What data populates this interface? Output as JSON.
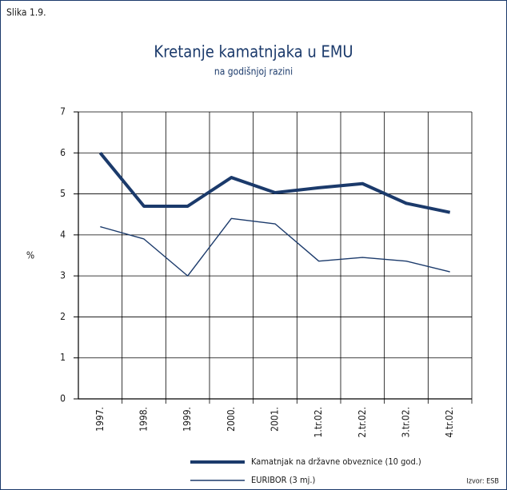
{
  "chart_data": {
    "type": "line",
    "figure_label": "Slika 1.9.",
    "title": "Kretanje kamatnjaka u EMU",
    "subtitle": "na godišnjoj razini",
    "y_label": "%",
    "source": "Izvor: ESB",
    "categories": [
      "1997.",
      "1998.",
      "1999.",
      "2000.",
      "2001.",
      "1.tr.02.",
      "2.tr.02.",
      "3.tr.02.",
      "4.tr.02."
    ],
    "series": [
      {
        "name": "Kamatnjak na državne obveznice (10 god.)",
        "color": "#1b3a6b",
        "values": [
          6.0,
          4.7,
          4.7,
          5.4,
          5.03,
          5.15,
          5.25,
          4.77,
          4.55
        ]
      },
      {
        "name": "EURIBOR (3 mj.)",
        "color": "#1b3a6b",
        "values": [
          4.2,
          3.9,
          3.0,
          4.4,
          4.27,
          3.36,
          3.45,
          3.36,
          3.1
        ]
      }
    ],
    "ylim": [
      0,
      7
    ],
    "yticks": [
      0,
      1,
      2,
      3,
      4,
      5,
      6,
      7
    ],
    "grid": true
  }
}
